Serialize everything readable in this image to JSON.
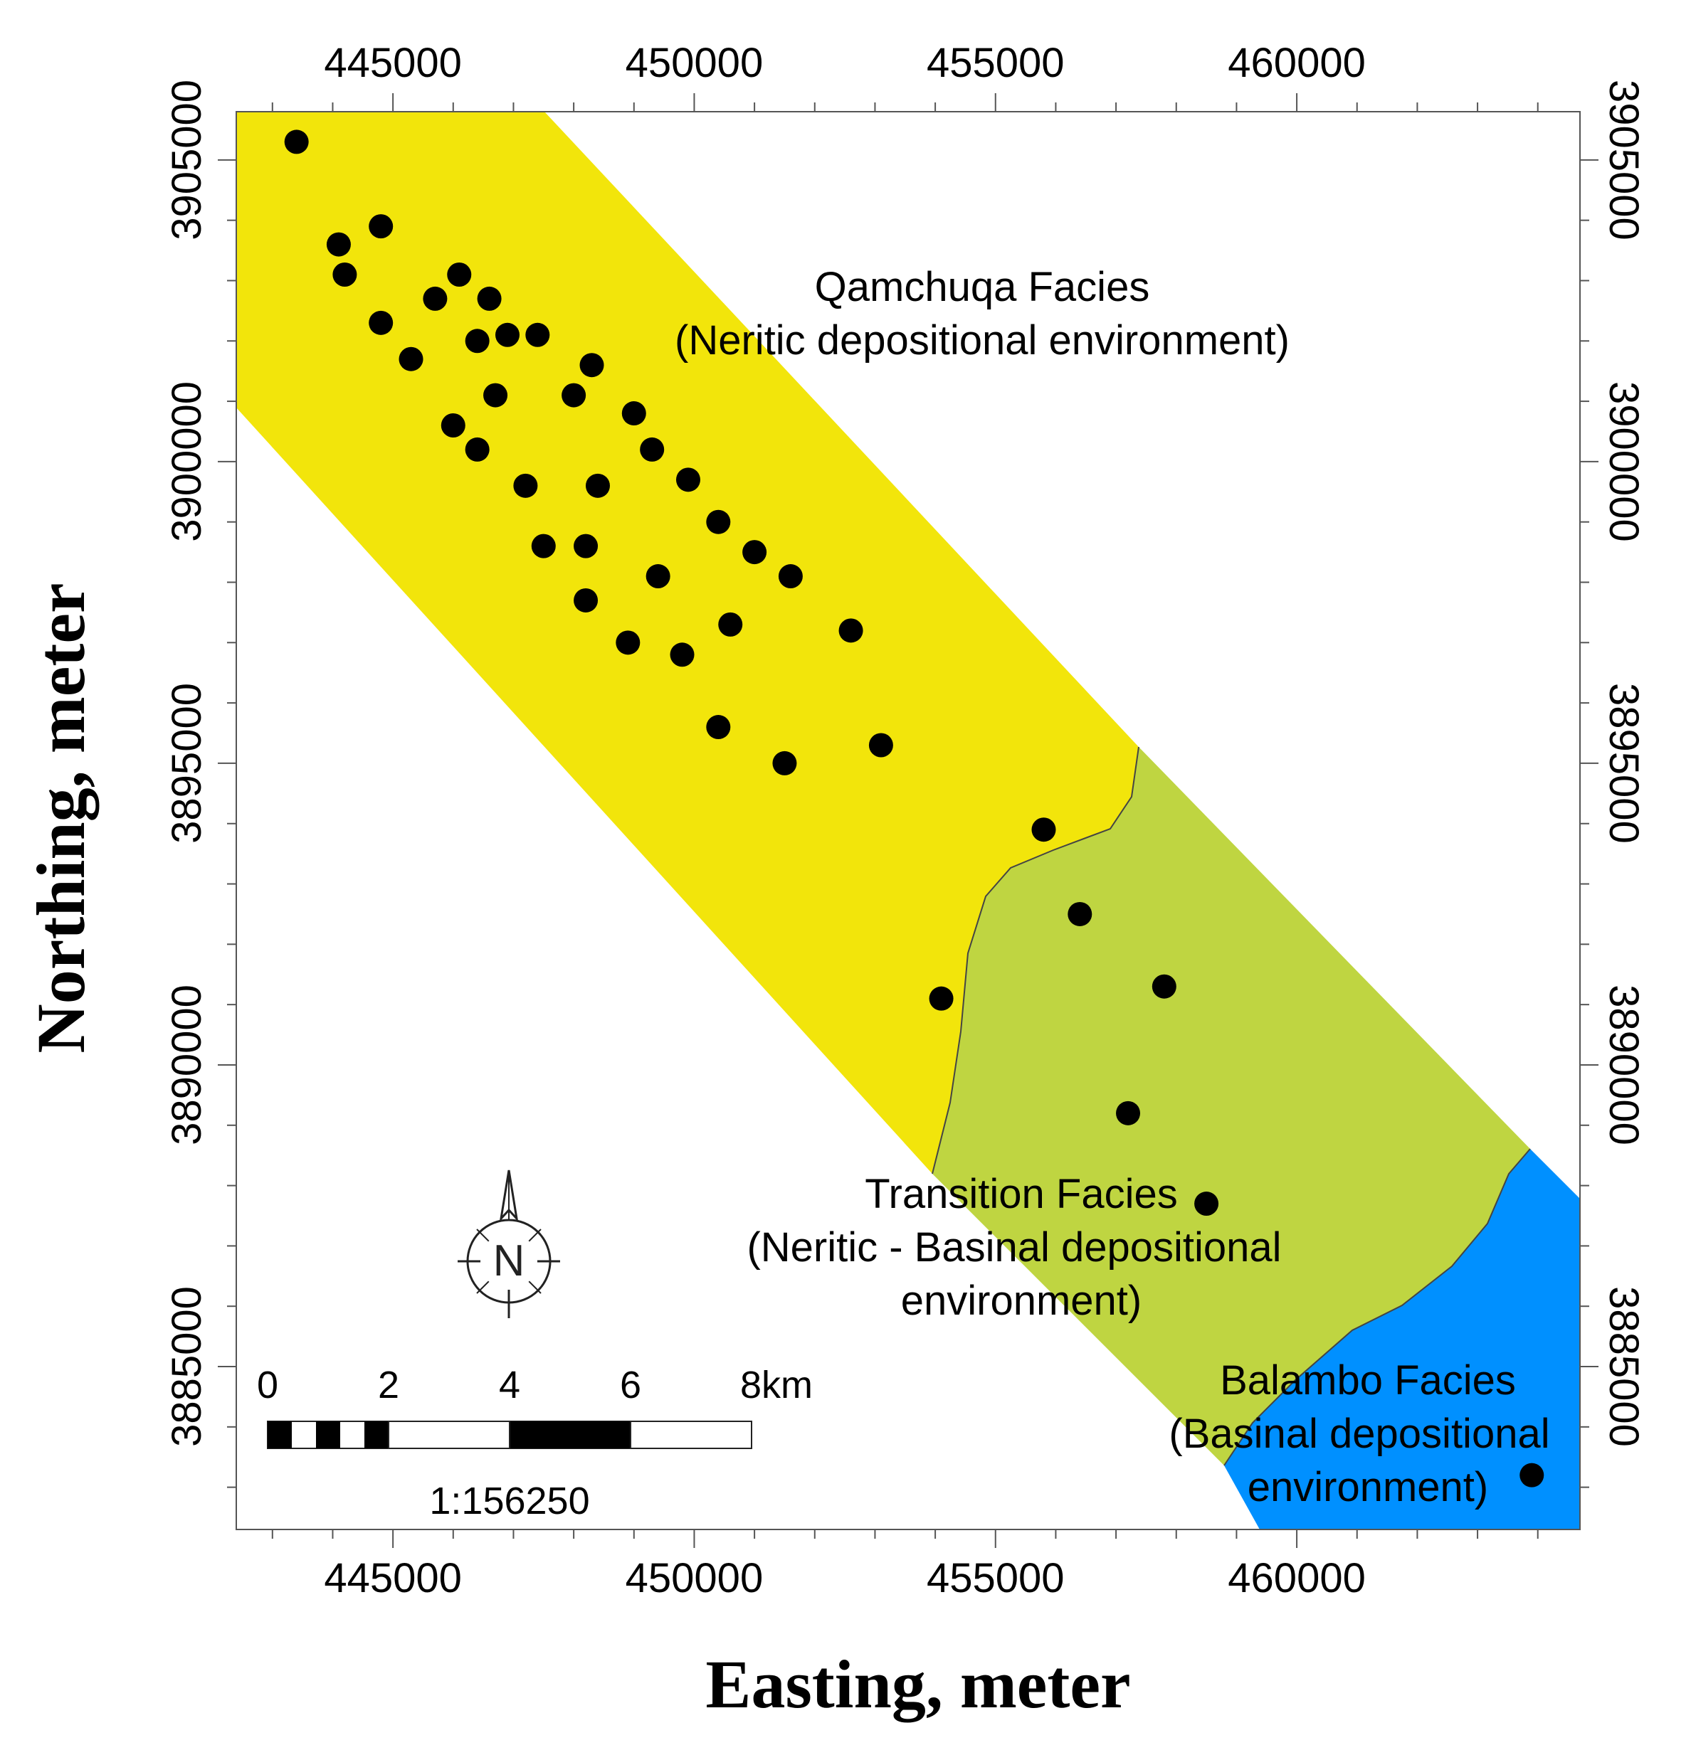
{
  "axes": {
    "x_label": "Easting, meter",
    "y_label": "Northing, meter",
    "x_ticks": [
      {
        "value": 445000,
        "label": "445000"
      },
      {
        "value": 450000,
        "label": "450000"
      },
      {
        "value": 455000,
        "label": "455000"
      },
      {
        "value": 460000,
        "label": "460000"
      }
    ],
    "y_ticks": [
      {
        "value": 3905000,
        "label": "3905000"
      },
      {
        "value": 3900000,
        "label": "3900000"
      },
      {
        "value": 3895000,
        "label": "3895000"
      },
      {
        "value": 3890000,
        "label": "3890000"
      },
      {
        "value": 3885000,
        "label": "3885000"
      }
    ],
    "x_range": [
      442400,
      464700
    ],
    "y_range": [
      3882300,
      3905800
    ]
  },
  "facies": [
    {
      "name": "Qamchuqa Facies",
      "description": "(Neritic depositional environment)",
      "color": "#f2e50b"
    },
    {
      "name": "Transition Facies",
      "description_line1": "(Neritic - Basinal depositional",
      "description_line2": "environment)",
      "color": "#bfd541"
    },
    {
      "name": "Balambo Facies",
      "description_line1": "(Basinal depositional",
      "description_line2": "environment)",
      "color": "#0090ff"
    }
  ],
  "scale_bar": {
    "labels": [
      "0",
      "2",
      "4",
      "6",
      "8km"
    ],
    "ratio": "1:156250"
  },
  "north_arrow": {
    "letter": "N"
  },
  "wells": [
    {
      "e": 443400,
      "n": 3905300
    },
    {
      "e": 444100,
      "n": 3903600
    },
    {
      "e": 444200,
      "n": 3903100
    },
    {
      "e": 444800,
      "n": 3903900
    },
    {
      "e": 444800,
      "n": 3902300
    },
    {
      "e": 445300,
      "n": 3901700
    },
    {
      "e": 445700,
      "n": 3902700
    },
    {
      "e": 446100,
      "n": 3903100
    },
    {
      "e": 446600,
      "n": 3902700
    },
    {
      "e": 446400,
      "n": 3902000
    },
    {
      "e": 446900,
      "n": 3902100
    },
    {
      "e": 447400,
      "n": 3902100
    },
    {
      "e": 446000,
      "n": 3900600
    },
    {
      "e": 446400,
      "n": 3900200
    },
    {
      "e": 446700,
      "n": 3901100
    },
    {
      "e": 448000,
      "n": 3901100
    },
    {
      "e": 448300,
      "n": 3901600
    },
    {
      "e": 447200,
      "n": 3899600
    },
    {
      "e": 447500,
      "n": 3898600
    },
    {
      "e": 448200,
      "n": 3898600
    },
    {
      "e": 448400,
      "n": 3899600
    },
    {
      "e": 448200,
      "n": 3897700
    },
    {
      "e": 449000,
      "n": 3900800
    },
    {
      "e": 449300,
      "n": 3900200
    },
    {
      "e": 449400,
      "n": 3898100
    },
    {
      "e": 449900,
      "n": 3899700
    },
    {
      "e": 448900,
      "n": 3897000
    },
    {
      "e": 449800,
      "n": 3896800
    },
    {
      "e": 450400,
      "n": 3899000
    },
    {
      "e": 450600,
      "n": 3897300
    },
    {
      "e": 451000,
      "n": 3898500
    },
    {
      "e": 451600,
      "n": 3898100
    },
    {
      "e": 450400,
      "n": 3895600
    },
    {
      "e": 451500,
      "n": 3895000
    },
    {
      "e": 452600,
      "n": 3897200
    },
    {
      "e": 453100,
      "n": 3895300
    },
    {
      "e": 454100,
      "n": 3891100
    },
    {
      "e": 455800,
      "n": 3893900
    },
    {
      "e": 456400,
      "n": 3892500
    },
    {
      "e": 457800,
      "n": 3891300
    },
    {
      "e": 457200,
      "n": 3889200
    },
    {
      "e": 458500,
      "n": 3887700
    },
    {
      "e": 463900,
      "n": 3883200
    }
  ]
}
